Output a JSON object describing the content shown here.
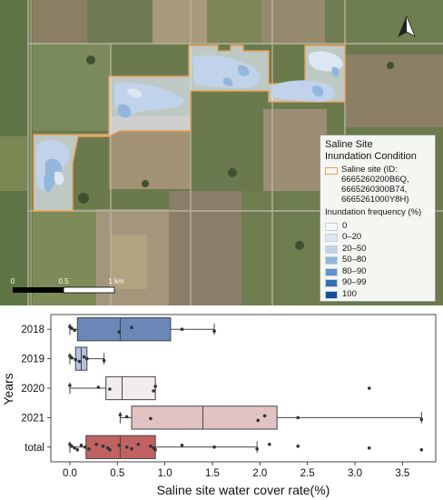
{
  "map": {
    "legend": {
      "title": "Saline Site\nInundation Condition",
      "site_label": "Saline site (ID:\n6665260200B6Q,\n6665260300B74,\n6665261000Y8H)",
      "site_color": "#e8a05a",
      "frequency_title": "Inundation frequency (%)",
      "frequency_classes": [
        {
          "label": "0",
          "color": "#f4f8fd"
        },
        {
          "label": "0–20",
          "color": "#dde7f4"
        },
        {
          "label": "20–50",
          "color": "#c0d3ea"
        },
        {
          "label": "50–80",
          "color": "#93b7dc"
        },
        {
          "label": "80–90",
          "color": "#5e94cb"
        },
        {
          "label": "90–99",
          "color": "#2f70b7"
        },
        {
          "label": "100",
          "color": "#124f9a"
        }
      ]
    },
    "scalebar": {
      "labels": [
        "0",
        "0.5",
        "1 km"
      ]
    },
    "north_arrow": "north-arrow-icon"
  },
  "chart_data": {
    "type": "boxplot",
    "orientation": "horizontal",
    "xlabel": "Saline site water cover rate(%)",
    "ylabel": "Years",
    "xlim": [
      -0.2,
      3.85
    ],
    "xticks": [
      "0.0",
      "0.5",
      "1.0",
      "1.5",
      "2.0",
      "2.5",
      "3.0",
      "3.5"
    ],
    "xtick_values": [
      0.0,
      0.5,
      1.0,
      1.5,
      2.0,
      2.5,
      3.0,
      3.5
    ],
    "categories": [
      "2018",
      "2019",
      "2020",
      "2021",
      "total"
    ],
    "boxes": [
      {
        "category": "2018",
        "whisker_low": 0.0,
        "q1": 0.08,
        "median": 0.53,
        "q3": 1.06,
        "whisker_high": 1.52,
        "color": "#6b87b8",
        "points": [
          0.0,
          0.02,
          0.05,
          0.52,
          0.65,
          1.18,
          1.52
        ]
      },
      {
        "category": "2019",
        "whisker_low": 0.0,
        "q1": 0.06,
        "median": 0.12,
        "q3": 0.18,
        "whisker_high": 0.36,
        "color": "#b4c2df",
        "points": [
          0.0,
          0.02,
          0.06,
          0.1,
          0.15,
          0.18,
          0.36
        ]
      },
      {
        "category": "2020",
        "whisker_low": 0.0,
        "q1": 0.38,
        "median": 0.55,
        "q3": 0.9,
        "whisker_high": 0.9,
        "color": "#f2ecec",
        "points": [
          0.0,
          0.3,
          0.42,
          0.88,
          0.9,
          3.15
        ]
      },
      {
        "category": "2021",
        "whisker_low": 0.53,
        "q1": 0.65,
        "median": 1.4,
        "q3": 2.18,
        "whisker_high": 3.7,
        "color": "#e2c3c3",
        "points": [
          0.53,
          0.6,
          0.85,
          1.98,
          2.05,
          2.4,
          3.7
        ]
      },
      {
        "category": "total",
        "whisker_low": 0.0,
        "q1": 0.17,
        "median": 0.53,
        "q3": 0.9,
        "whisker_high": 1.97,
        "color": "#c06262",
        "points": [
          0.0,
          0.02,
          0.05,
          0.08,
          0.12,
          0.16,
          0.2,
          0.28,
          0.35,
          0.4,
          0.42,
          0.52,
          0.6,
          0.65,
          0.72,
          0.85,
          0.88,
          0.9,
          1.18,
          1.52,
          1.97,
          2.1,
          2.4,
          3.15,
          3.7
        ]
      }
    ]
  }
}
